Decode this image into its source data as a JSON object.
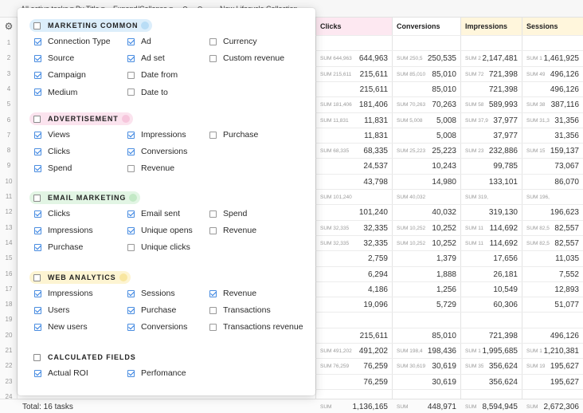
{
  "toolbar": {
    "filter": "All active tasks ▾",
    "group_by": "By Title ▾",
    "expand": "Expand/Collapse ▾",
    "undo": "↶",
    "redo": "↷",
    "project": "New Lifecycle Collection"
  },
  "gear_icon": "⚙",
  "columns": [
    {
      "label": "Clicks"
    },
    {
      "label": "Conversions"
    },
    {
      "label": "Impressions"
    },
    {
      "label": "Sessions"
    }
  ],
  "row_numbers": [
    "1",
    "2",
    "3",
    "4",
    "5",
    "6",
    "7",
    "8",
    "9",
    "10",
    "11",
    "12",
    "13",
    "14",
    "15",
    "16",
    "17",
    "18",
    "19",
    "20",
    "21",
    "22",
    "23",
    "24"
  ],
  "rows": [
    {
      "c": [
        {
          "s": "",
          "v": ""
        },
        {
          "s": "",
          "v": ""
        },
        {
          "s": "",
          "v": ""
        },
        {
          "s": "",
          "v": ""
        }
      ]
    },
    {
      "c": [
        {
          "s": "SUM 644,963",
          "v": "644,963"
        },
        {
          "s": "SUM 250,5",
          "v": "250,535"
        },
        {
          "s": "SUM 2",
          "v": "2,147,481"
        },
        {
          "s": "SUM 1",
          "v": "1,461,925"
        }
      ]
    },
    {
      "c": [
        {
          "s": "SUM 215,611",
          "v": "215,611"
        },
        {
          "s": "SUM 85,010",
          "v": "85,010"
        },
        {
          "s": "SUM 72",
          "v": "721,398"
        },
        {
          "s": "SUM 49",
          "v": "496,126"
        }
      ]
    },
    {
      "c": [
        {
          "s": "",
          "v": "215,611"
        },
        {
          "s": "",
          "v": "85,010"
        },
        {
          "s": "",
          "v": "721,398"
        },
        {
          "s": "",
          "v": "496,126"
        }
      ]
    },
    {
      "c": [
        {
          "s": "SUM 181,406",
          "v": "181,406"
        },
        {
          "s": "SUM 70,263",
          "v": "70,263"
        },
        {
          "s": "SUM 58",
          "v": "589,993"
        },
        {
          "s": "SUM 38",
          "v": "387,116"
        }
      ]
    },
    {
      "c": [
        {
          "s": "SUM 11,831",
          "v": "11,831"
        },
        {
          "s": "SUM 5,008",
          "v": "5,008"
        },
        {
          "s": "SUM 37,9",
          "v": "37,977"
        },
        {
          "s": "SUM 31,3",
          "v": "31,356"
        }
      ]
    },
    {
      "c": [
        {
          "s": "",
          "v": "11,831"
        },
        {
          "s": "",
          "v": "5,008"
        },
        {
          "s": "",
          "v": "37,977"
        },
        {
          "s": "",
          "v": "31,356"
        }
      ]
    },
    {
      "c": [
        {
          "s": "SUM 68,335",
          "v": "68,335"
        },
        {
          "s": "SUM 25,223",
          "v": "25,223"
        },
        {
          "s": "SUM 23",
          "v": "232,886"
        },
        {
          "s": "SUM 15",
          "v": "159,137"
        }
      ]
    },
    {
      "c": [
        {
          "s": "",
          "v": "24,537"
        },
        {
          "s": "",
          "v": "10,243"
        },
        {
          "s": "",
          "v": "99,785"
        },
        {
          "s": "",
          "v": "73,067"
        }
      ]
    },
    {
      "c": [
        {
          "s": "",
          "v": "43,798"
        },
        {
          "s": "",
          "v": "14,980"
        },
        {
          "s": "",
          "v": "133,101"
        },
        {
          "s": "",
          "v": "86,070"
        }
      ]
    },
    {
      "c": [
        {
          "s": "SUM 101,240",
          "v": ""
        },
        {
          "s": "SUM 40,032",
          "v": ""
        },
        {
          "s": "SUM 319,130",
          "v": ""
        },
        {
          "s": "SUM 196,623",
          "v": ""
        }
      ]
    },
    {
      "c": [
        {
          "s": "",
          "v": "101,240"
        },
        {
          "s": "",
          "v": "40,032"
        },
        {
          "s": "",
          "v": "319,130"
        },
        {
          "s": "",
          "v": "196,623"
        }
      ]
    },
    {
      "c": [
        {
          "s": "SUM 32,335",
          "v": "32,335"
        },
        {
          "s": "SUM 10,252",
          "v": "10,252"
        },
        {
          "s": "SUM 11",
          "v": "114,692"
        },
        {
          "s": "SUM 82,5",
          "v": "82,557"
        }
      ]
    },
    {
      "c": [
        {
          "s": "SUM 32,335",
          "v": "32,335"
        },
        {
          "s": "SUM 10,252",
          "v": "10,252"
        },
        {
          "s": "SUM 11",
          "v": "114,692"
        },
        {
          "s": "SUM 82,5",
          "v": "82,557"
        }
      ]
    },
    {
      "c": [
        {
          "s": "",
          "v": "2,759"
        },
        {
          "s": "",
          "v": "1,379"
        },
        {
          "s": "",
          "v": "17,656"
        },
        {
          "s": "",
          "v": "11,035"
        }
      ]
    },
    {
      "c": [
        {
          "s": "",
          "v": "6,294"
        },
        {
          "s": "",
          "v": "1,888"
        },
        {
          "s": "",
          "v": "26,181"
        },
        {
          "s": "",
          "v": "7,552"
        }
      ]
    },
    {
      "c": [
        {
          "s": "",
          "v": "4,186"
        },
        {
          "s": "",
          "v": "1,256"
        },
        {
          "s": "",
          "v": "10,549"
        },
        {
          "s": "",
          "v": "12,893"
        }
      ]
    },
    {
      "c": [
        {
          "s": "",
          "v": "19,096"
        },
        {
          "s": "",
          "v": "5,729"
        },
        {
          "s": "",
          "v": "60,306"
        },
        {
          "s": "",
          "v": "51,077"
        }
      ]
    },
    {
      "c": [
        {
          "s": "",
          "v": ""
        },
        {
          "s": "",
          "v": ""
        },
        {
          "s": "",
          "v": ""
        },
        {
          "s": "",
          "v": ""
        }
      ]
    },
    {
      "c": [
        {
          "s": "",
          "v": "215,611"
        },
        {
          "s": "",
          "v": "85,010"
        },
        {
          "s": "",
          "v": "721,398"
        },
        {
          "s": "",
          "v": "496,126"
        }
      ]
    },
    {
      "c": [
        {
          "s": "SUM 491,202",
          "v": "491,202"
        },
        {
          "s": "SUM 198,4",
          "v": "198,436"
        },
        {
          "s": "SUM 1",
          "v": "1,995,685"
        },
        {
          "s": "SUM 1",
          "v": "1,210,381"
        }
      ]
    },
    {
      "c": [
        {
          "s": "SUM 76,259",
          "v": "76,259"
        },
        {
          "s": "SUM 30,619",
          "v": "30,619"
        },
        {
          "s": "SUM 35",
          "v": "356,624"
        },
        {
          "s": "SUM 19",
          "v": "195,627"
        }
      ]
    },
    {
      "c": [
        {
          "s": "",
          "v": "76,259"
        },
        {
          "s": "",
          "v": "30,619"
        },
        {
          "s": "",
          "v": "356,624"
        },
        {
          "s": "",
          "v": "195,627"
        }
      ]
    },
    {
      "c": [
        {
          "s": "",
          "v": ""
        },
        {
          "s": "",
          "v": ""
        },
        {
          "s": "",
          "v": ""
        },
        {
          "s": "",
          "v": ""
        }
      ]
    }
  ],
  "footer": {
    "total_label": "Total: 16 tasks",
    "sums": [
      {
        "s": "SUM",
        "v": "1,136,165"
      },
      {
        "s": "SUM",
        "v": "448,971"
      },
      {
        "s": "SUM",
        "v": "8,594,945"
      },
      {
        "s": "SUM",
        "v": "2,672,306"
      }
    ]
  },
  "panel": {
    "groups": [
      {
        "label": "MARKETING COMMON",
        "color": "#dceefb",
        "dot": "#b9ddf6",
        "options": [
          {
            "label": "Connection Type",
            "checked": true
          },
          {
            "label": "Ad",
            "checked": true
          },
          {
            "label": "Currency",
            "checked": false
          },
          {
            "label": "Source",
            "checked": true
          },
          {
            "label": "Ad set",
            "checked": true
          },
          {
            "label": "Custom revenue",
            "checked": false
          },
          {
            "label": "Campaign",
            "checked": true
          },
          {
            "label": "Date from",
            "checked": false
          },
          {
            "label": "Medium",
            "checked": true
          },
          {
            "label": "Date to",
            "checked": false
          }
        ]
      },
      {
        "label": "ADVERTISEMENT",
        "color": "#fbe3ee",
        "dot": "#f6c6dc",
        "options": [
          {
            "label": "Views",
            "checked": true
          },
          {
            "label": "Impressions",
            "checked": true
          },
          {
            "label": "Purchase",
            "checked": false
          },
          {
            "label": "Clicks",
            "checked": true
          },
          {
            "label": "Conversions",
            "checked": true
          },
          {
            "label": "Spend",
            "checked": true
          },
          {
            "label": "Revenue",
            "checked": false
          }
        ]
      },
      {
        "label": "EMAIL MARKETING",
        "color": "#e2f5e4",
        "dot": "#c3e9c6",
        "options": [
          {
            "label": "Clicks",
            "checked": true
          },
          {
            "label": "Email sent",
            "checked": true
          },
          {
            "label": "Spend",
            "checked": false
          },
          {
            "label": "Impressions",
            "checked": true
          },
          {
            "label": "Unique opens",
            "checked": true
          },
          {
            "label": "Revenue",
            "checked": false
          },
          {
            "label": "Purchase",
            "checked": true
          },
          {
            "label": "Unique clicks",
            "checked": false
          }
        ]
      },
      {
        "label": "WEB ANALYTICS",
        "color": "#fdf4d2",
        "dot": "#f8e6a0",
        "options": [
          {
            "label": "Impressions",
            "checked": true
          },
          {
            "label": "Sessions",
            "checked": true
          },
          {
            "label": "Revenue",
            "checked": true
          },
          {
            "label": "Users",
            "checked": true
          },
          {
            "label": "Purchase",
            "checked": true
          },
          {
            "label": "Transactions",
            "checked": false
          },
          {
            "label": "New users",
            "checked": true
          },
          {
            "label": "Conversions",
            "checked": true
          },
          {
            "label": "Transactions revenue",
            "checked": false
          }
        ]
      },
      {
        "label": "CALCULATED FIELDS",
        "color": "#ffffff",
        "dot": "",
        "options": [
          {
            "label": "Actual ROI",
            "checked": true
          },
          {
            "label": "Perfomance",
            "checked": true
          }
        ]
      }
    ]
  },
  "colors": {
    "clicks_header": "#fde8f1",
    "impressions_header": "#fff6dc",
    "sessions_header": "#fff6dc",
    "checkbox_accent": "#2f7de1"
  }
}
